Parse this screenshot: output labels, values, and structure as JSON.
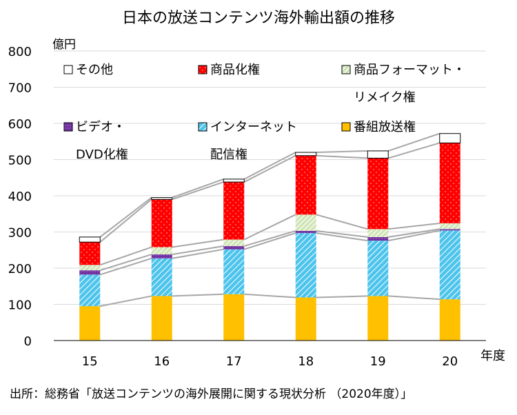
{
  "chart_data": {
    "type": "bar",
    "stacked": true,
    "title": "日本の放送コンテンツ海外輸出額の推移",
    "ylabel": "億円",
    "xlabel": "年度",
    "ylim": [
      0,
      800
    ],
    "yticks": [
      "0",
      "100",
      "200",
      "300",
      "400",
      "500",
      "600",
      "700",
      "800"
    ],
    "categories": [
      "15",
      "16",
      "17",
      "18",
      "19",
      "20"
    ],
    "grid": true,
    "series_lines": true,
    "legend_position": "top-left (inside plot)",
    "series": [
      {
        "name": "番組放送権",
        "values": [
          95,
          123,
          128,
          119,
          123,
          114
        ],
        "color": "#ffc000",
        "pattern": "solid"
      },
      {
        "name": "インターネット配信権",
        "values": [
          87,
          104,
          124,
          178,
          153,
          190
        ],
        "color": "#4dc4ec",
        "pattern": "diagonal"
      },
      {
        "name": "ビデオ・DVD化権",
        "values": [
          12,
          11,
          9,
          6,
          10,
          4
        ],
        "color": "#7030a0",
        "pattern": "dots"
      },
      {
        "name": "商品フォーマット・リメイク権",
        "values": [
          15,
          20,
          18,
          45,
          22,
          16
        ],
        "color": "#c4e0a4",
        "pattern": "hatch"
      },
      {
        "name": "商品化権",
        "values": [
          63,
          132,
          159,
          163,
          196,
          222
        ],
        "color": "#ff0000",
        "pattern": "dots"
      },
      {
        "name": "その他",
        "values": [
          14,
          5,
          8,
          9,
          20,
          26
        ],
        "color": "#ffffff",
        "pattern": "solid"
      }
    ]
  },
  "legend": [
    {
      "key": "その他",
      "lines": [
        "その他"
      ]
    },
    {
      "key": "商品化権",
      "lines": [
        "商品化権"
      ]
    },
    {
      "key": "商品フォーマット・リメイク権",
      "lines": [
        "商品フォーマット・",
        "リメイク権"
      ]
    },
    {
      "key": "ビデオ・DVD化権",
      "lines": [
        "ビデオ・",
        "DVD化権"
      ]
    },
    {
      "key": "インターネット配信権",
      "lines": [
        "インターネット",
        "配信権"
      ]
    },
    {
      "key": "番組放送権",
      "lines": [
        "番組放送権"
      ]
    }
  ],
  "source": "出所：総務省「放送コンテンツの海外展開に関する現状分析 （2020年度）」"
}
